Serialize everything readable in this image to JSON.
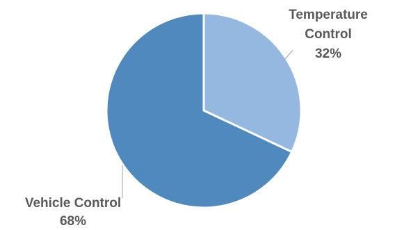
{
  "chart_data": {
    "type": "pie",
    "title": "",
    "start_angle_deg": 0,
    "direction": "clockwise",
    "slices": [
      {
        "label_lines": [
          "Temperature",
          "Control",
          "32%"
        ],
        "category": "Temperature Control",
        "value": 32,
        "percent_label": "32%",
        "color": "#95b8e0"
      },
      {
        "label_lines": [
          "Vehicle Control",
          "68%"
        ],
        "category": "Vehicle Control",
        "value": 68,
        "percent_label": "68%",
        "color": "#4f89bd"
      }
    ],
    "slice_border_color": "#ffffff",
    "label_color": "#595959",
    "leader_line_color": "#a6a6a6",
    "legend": "none"
  }
}
